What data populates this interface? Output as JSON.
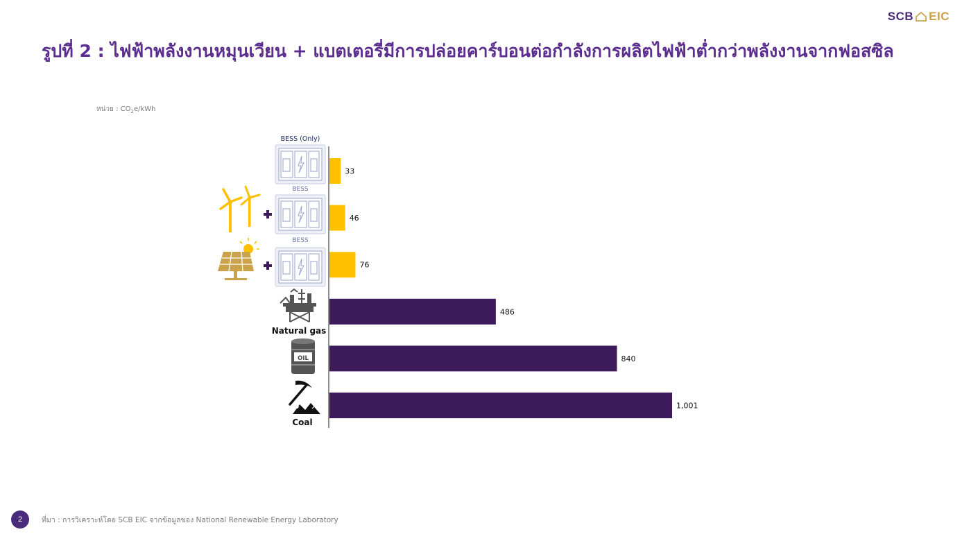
{
  "logo": {
    "left": "SCB",
    "right": "EIC"
  },
  "title": "รูปที่ 2 : ไฟฟ้าพลังงานหมุนเวียน + แบตเตอรี่มีการปล่อยคาร์บอนต่อกำลังการผลิตไฟฟ้าต่ำกว่าพลังงานจากฟอสซิล",
  "unit": {
    "prefix": "หน่วย : CO",
    "sub": "2",
    "suffix": "e/kWh"
  },
  "footer": {
    "page": "2",
    "source": "ที่มา : การวิเคราะห์โดย SCB EIC จากข้อมูลของ National Renewable Energy Laboratory"
  },
  "colors": {
    "renewable": "#FFC000",
    "fossil": "#3D1A5C",
    "brand": "#5b2d8e",
    "gold": "#C9A24A"
  },
  "chart_data": {
    "type": "bar",
    "orientation": "horizontal",
    "categories": [
      "BESS (Only)",
      "Wind + BESS",
      "Solar + BESS",
      "Natural gas",
      "Oil",
      "Coal"
    ],
    "category_labels": {
      "bess_only": "BESS (Only)",
      "bess": "BESS",
      "natural_gas": "Natural gas",
      "oil_barrel": "OIL",
      "coal": "Coal"
    },
    "values": [
      33,
      46,
      76,
      486,
      840,
      1001
    ],
    "value_labels": [
      "33",
      "46",
      "76",
      "486",
      "840",
      "1,001"
    ],
    "bar_colors": [
      "#FFC000",
      "#FFC000",
      "#FFC000",
      "#3D1A5C",
      "#3D1A5C",
      "#3D1A5C"
    ],
    "icons": [
      "battery-storage-icon",
      "wind-turbine-icon",
      "solar-panel-icon",
      "gas-rig-icon",
      "oil-barrel-icon",
      "coal-pickaxe-icon"
    ],
    "xlim": [
      0,
      1001
    ],
    "grid": false
  }
}
